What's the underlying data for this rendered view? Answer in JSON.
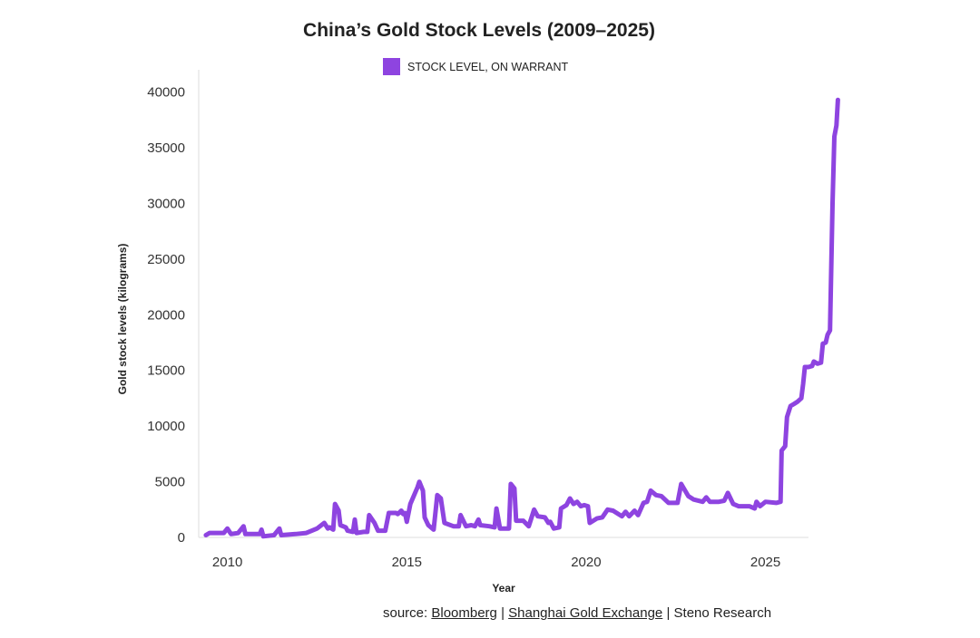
{
  "title": "China’s Gold Stock Levels (2009–2025)",
  "source": {
    "prefix": "source: ",
    "links": [
      "Bloomberg",
      "Shanghai Gold Exchange"
    ],
    "sep": " | ",
    "suffix": "Steno Research"
  },
  "chart_data": {
    "type": "line",
    "title": "China’s Gold Stock Levels (2009–2025)",
    "xlabel": "Year",
    "ylabel": "Gold stock levels (kilograms)",
    "xlim": [
      2009.2,
      2026.2
    ],
    "ylim": [
      0,
      42000
    ],
    "x_ticks": [
      2010,
      2015,
      2020,
      2025
    ],
    "y_ticks": [
      0,
      5000,
      10000,
      15000,
      20000,
      25000,
      30000,
      35000,
      40000
    ],
    "grid": false,
    "legend_position": "top",
    "color": "#8e44e0",
    "series": [
      {
        "name": "STOCK LEVEL, ON WARRANT",
        "points": [
          [
            2009.4,
            200
          ],
          [
            2009.5,
            400
          ],
          [
            2009.9,
            400
          ],
          [
            2010.0,
            800
          ],
          [
            2010.1,
            300
          ],
          [
            2010.3,
            400
          ],
          [
            2010.45,
            1000
          ],
          [
            2010.5,
            300
          ],
          [
            2010.9,
            300
          ],
          [
            2010.95,
            700
          ],
          [
            2011.0,
            100
          ],
          [
            2011.3,
            200
          ],
          [
            2011.45,
            800
          ],
          [
            2011.5,
            200
          ],
          [
            2011.9,
            300
          ],
          [
            2012.2,
            400
          ],
          [
            2012.5,
            800
          ],
          [
            2012.7,
            1300
          ],
          [
            2012.8,
            800
          ],
          [
            2012.85,
            900
          ],
          [
            2012.95,
            700
          ],
          [
            2013.0,
            3000
          ],
          [
            2013.1,
            2400
          ],
          [
            2013.15,
            1100
          ],
          [
            2013.3,
            900
          ],
          [
            2013.35,
            600
          ],
          [
            2013.5,
            500
          ],
          [
            2013.55,
            1600
          ],
          [
            2013.6,
            400
          ],
          [
            2013.8,
            500
          ],
          [
            2013.9,
            500
          ],
          [
            2013.95,
            2000
          ],
          [
            2014.1,
            1300
          ],
          [
            2014.2,
            600
          ],
          [
            2014.4,
            600
          ],
          [
            2014.5,
            2200
          ],
          [
            2014.7,
            2200
          ],
          [
            2014.75,
            2100
          ],
          [
            2014.85,
            2400
          ],
          [
            2014.9,
            2100
          ],
          [
            2014.95,
            2200
          ],
          [
            2015.0,
            1400
          ],
          [
            2015.1,
            3000
          ],
          [
            2015.3,
            4500
          ],
          [
            2015.35,
            5000
          ],
          [
            2015.45,
            4200
          ],
          [
            2015.5,
            1800
          ],
          [
            2015.6,
            1100
          ],
          [
            2015.75,
            700
          ],
          [
            2015.85,
            3800
          ],
          [
            2015.95,
            3500
          ],
          [
            2016.05,
            1300
          ],
          [
            2016.3,
            1000
          ],
          [
            2016.45,
            1000
          ],
          [
            2016.5,
            2000
          ],
          [
            2016.65,
            1000
          ],
          [
            2016.8,
            1100
          ],
          [
            2016.9,
            1000
          ],
          [
            2017.0,
            1600
          ],
          [
            2017.05,
            1100
          ],
          [
            2017.3,
            1000
          ],
          [
            2017.45,
            900
          ],
          [
            2017.5,
            2600
          ],
          [
            2017.6,
            800
          ],
          [
            2017.85,
            800
          ],
          [
            2017.9,
            4800
          ],
          [
            2018.0,
            4400
          ],
          [
            2018.05,
            1500
          ],
          [
            2018.25,
            1500
          ],
          [
            2018.4,
            1000
          ],
          [
            2018.55,
            2500
          ],
          [
            2018.65,
            1900
          ],
          [
            2018.85,
            1800
          ],
          [
            2018.95,
            1300
          ],
          [
            2019.0,
            1400
          ],
          [
            2019.1,
            800
          ],
          [
            2019.25,
            900
          ],
          [
            2019.3,
            2600
          ],
          [
            2019.45,
            2900
          ],
          [
            2019.55,
            3500
          ],
          [
            2019.65,
            3000
          ],
          [
            2019.75,
            3200
          ],
          [
            2019.85,
            2800
          ],
          [
            2019.95,
            2900
          ],
          [
            2020.05,
            2800
          ],
          [
            2020.1,
            1300
          ],
          [
            2020.3,
            1700
          ],
          [
            2020.45,
            1800
          ],
          [
            2020.6,
            2500
          ],
          [
            2020.75,
            2400
          ],
          [
            2020.9,
            2100
          ],
          [
            2021.0,
            1900
          ],
          [
            2021.1,
            2300
          ],
          [
            2021.2,
            1900
          ],
          [
            2021.35,
            2400
          ],
          [
            2021.45,
            2000
          ],
          [
            2021.6,
            3100
          ],
          [
            2021.7,
            3200
          ],
          [
            2021.8,
            4200
          ],
          [
            2021.95,
            3800
          ],
          [
            2022.1,
            3700
          ],
          [
            2022.3,
            3100
          ],
          [
            2022.55,
            3100
          ],
          [
            2022.65,
            4800
          ],
          [
            2022.85,
            3700
          ],
          [
            2023.0,
            3400
          ],
          [
            2023.25,
            3200
          ],
          [
            2023.35,
            3600
          ],
          [
            2023.45,
            3200
          ],
          [
            2023.7,
            3200
          ],
          [
            2023.85,
            3300
          ],
          [
            2023.95,
            4000
          ],
          [
            2024.1,
            3000
          ],
          [
            2024.25,
            2800
          ],
          [
            2024.55,
            2800
          ],
          [
            2024.7,
            2600
          ],
          [
            2024.75,
            3200
          ],
          [
            2024.85,
            2800
          ],
          [
            2025.0,
            3200
          ],
          [
            2025.3,
            3100
          ],
          [
            2025.42,
            3200
          ],
          [
            2025.45,
            7800
          ],
          [
            2025.55,
            8200
          ],
          [
            2025.6,
            10800
          ],
          [
            2025.7,
            11800
          ],
          [
            2025.8,
            12000
          ],
          [
            2025.9,
            12200
          ],
          [
            2026.0,
            12500
          ],
          [
            2026.05,
            13800
          ],
          [
            2026.1,
            15300
          ],
          [
            2026.2,
            15300
          ],
          [
            2026.3,
            15400
          ],
          [
            2026.35,
            15800
          ],
          [
            2026.45,
            15600
          ],
          [
            2026.55,
            15700
          ],
          [
            2026.6,
            17400
          ],
          [
            2026.68,
            17500
          ],
          [
            2026.73,
            18200
          ],
          [
            2026.8,
            18600
          ],
          [
            2026.87,
            30000
          ],
          [
            2026.92,
            36000
          ],
          [
            2026.98,
            37000
          ],
          [
            2027.02,
            39300
          ]
        ]
      }
    ]
  }
}
